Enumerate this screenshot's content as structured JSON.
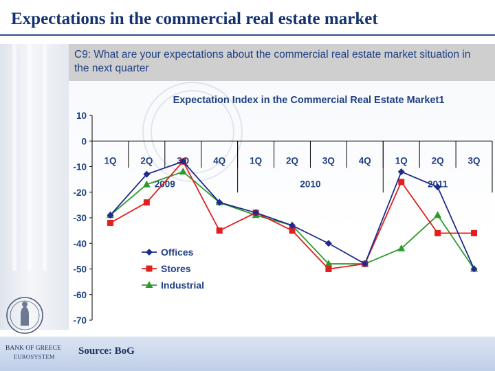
{
  "slide": {
    "title": "Expectations in the commercial real estate market",
    "question": "C9: What are your expectations about the commercial real estate market situation in the next quarter",
    "source": "Source: BoG",
    "bank_name": "BANK OF GREECE",
    "bank_sub": "EUROSYSTEM"
  },
  "colors": {
    "offices": "#1f2a8a",
    "stores": "#e0201f",
    "industrial": "#2e9a2e",
    "title": "#14326e",
    "chart_title": "#1f3f83"
  },
  "chart_data": {
    "type": "line",
    "title": "Expectation Index in the Commercial Real Estate Market1",
    "xlabel": "",
    "ylabel": "",
    "ylim": [
      -70,
      10
    ],
    "yticks": [
      10,
      0,
      -10,
      -20,
      -30,
      -40,
      -50,
      -60,
      -70
    ],
    "categories": [
      "1Q",
      "2Q",
      "3Q",
      "4Q",
      "1Q",
      "2Q",
      "3Q",
      "4Q",
      "1Q",
      "2Q",
      "3Q"
    ],
    "year_groups": [
      {
        "label": "2009",
        "count": 4
      },
      {
        "label": "2010",
        "count": 4
      },
      {
        "label": "2011",
        "count": 3
      }
    ],
    "legend_position": "center-left",
    "grid": false,
    "series": [
      {
        "name": "Offices",
        "marker": "diamond",
        "values": [
          -29,
          -13,
          -8,
          -24,
          -28,
          -33,
          -40,
          -48,
          -12,
          -18,
          -50
        ]
      },
      {
        "name": "Stores",
        "marker": "square",
        "values": [
          -32,
          -24,
          -8,
          -35,
          -28,
          -35,
          -50,
          -48,
          -16,
          -36,
          -36
        ]
      },
      {
        "name": "Industrial",
        "marker": "triangle",
        "values": [
          -29,
          -17,
          -12,
          -24,
          -29,
          -33,
          -48,
          -48,
          -42,
          -29,
          -50
        ]
      }
    ]
  }
}
